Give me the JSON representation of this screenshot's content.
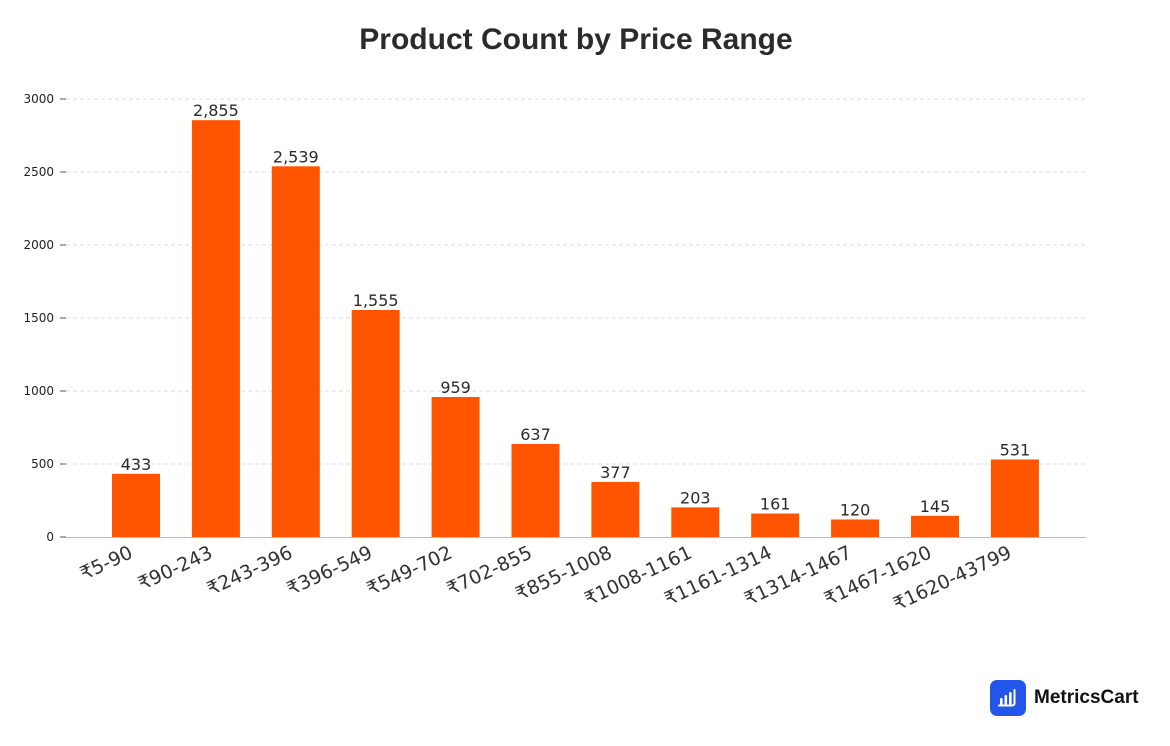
{
  "chart_data": {
    "type": "bar",
    "title": "Product Count by Price Range",
    "xlabel": "",
    "ylabel": "",
    "categories": [
      "₹5-90",
      "₹90-243",
      "₹243-396",
      "₹396-549",
      "₹549-702",
      "₹702-855",
      "₹855-1008",
      "₹1008-1161",
      "₹1161-1314",
      "₹1314-1467",
      "₹1467-1620",
      "₹1620-43799"
    ],
    "values": [
      433,
      2855,
      2539,
      1555,
      959,
      637,
      377,
      203,
      161,
      120,
      145,
      531
    ],
    "value_labels": [
      "433",
      "2,855",
      "2,539",
      "1,555",
      "959",
      "637",
      "377",
      "203",
      "161",
      "120",
      "145",
      "531"
    ],
    "ylim": [
      0,
      3000
    ],
    "yticks": [
      "0",
      "500",
      "1000",
      "1500",
      "2000",
      "2500",
      "3000"
    ],
    "grid": true,
    "bar_color": "#ff5500"
  },
  "branding": {
    "name": "MetricsCart",
    "icon": "bar-chart-icon",
    "icon_color": "#2356e8"
  }
}
